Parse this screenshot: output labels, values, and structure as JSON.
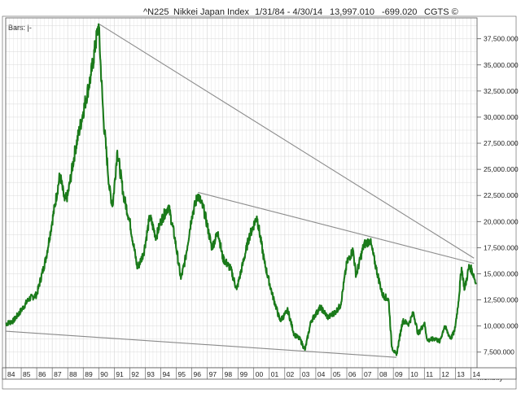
{
  "header": {
    "symbol": "^N225",
    "name": "Nikkei Japan Index",
    "range": "1/31/84 - 4/30/14",
    "last": "13,997.010",
    "change": "-699.020",
    "brand": "CGTS ©"
  },
  "bars_label": "Bars: |-",
  "period_label": "Monthly",
  "colors": {
    "price": "#1a7a1a",
    "trendline": "#8a8a8a",
    "grid": "#d9d9d9",
    "frame": "#555555",
    "background": "#ffffff"
  },
  "chart_data": {
    "type": "line",
    "title": "^N225 Nikkei Japan Index",
    "xlabel": "",
    "ylabel": "",
    "xlim": [
      1984.0,
      2014.4
    ],
    "ylim": [
      6000,
      39500
    ],
    "grid": true,
    "y_ticks": [
      7500,
      10000,
      12500,
      15000,
      17500,
      20000,
      22500,
      25000,
      27500,
      30000,
      32500,
      35000,
      37500
    ],
    "y_tick_labels": [
      "7,500.000",
      "10,000.000",
      "12,500.000",
      "15,000.000",
      "17,500.000",
      "20,000.000",
      "22,500.000",
      "25,000.000",
      "27,500.000",
      "30,000.000",
      "32,500.000",
      "35,000.000",
      "37,500.000"
    ],
    "x_tick_labels": [
      "84",
      "85",
      "86",
      "87",
      "88",
      "89",
      "90",
      "91",
      "92",
      "93",
      "94",
      "95",
      "96",
      "97",
      "98",
      "99",
      "00",
      "01",
      "02",
      "03",
      "04",
      "05",
      "06",
      "07",
      "08",
      "09",
      "10",
      "11",
      "12",
      "13",
      "14"
    ],
    "series": [
      {
        "values": [
          [
            1984.0,
            10200
          ],
          [
            1984.5,
            10500
          ],
          [
            1985.0,
            11500
          ],
          [
            1985.5,
            12600
          ],
          [
            1986.0,
            13000
          ],
          [
            1986.6,
            16500
          ],
          [
            1987.0,
            20000
          ],
          [
            1987.5,
            24500
          ],
          [
            1987.8,
            22000
          ],
          [
            1988.0,
            22500
          ],
          [
            1988.5,
            27000
          ],
          [
            1989.0,
            30500
          ],
          [
            1989.5,
            34000
          ],
          [
            1989.99,
            38900
          ],
          [
            1990.3,
            30000
          ],
          [
            1990.7,
            23000
          ],
          [
            1990.9,
            21500
          ],
          [
            1991.2,
            26800
          ],
          [
            1991.6,
            22500
          ],
          [
            1992.0,
            20000
          ],
          [
            1992.5,
            15500
          ],
          [
            1992.9,
            17000
          ],
          [
            1993.3,
            20500
          ],
          [
            1993.7,
            18500
          ],
          [
            1994.0,
            20000
          ],
          [
            1994.5,
            21500
          ],
          [
            1994.9,
            18500
          ],
          [
            1995.3,
            14500
          ],
          [
            1995.6,
            16500
          ],
          [
            1996.0,
            20500
          ],
          [
            1996.4,
            22600
          ],
          [
            1996.8,
            21000
          ],
          [
            1997.3,
            17500
          ],
          [
            1997.7,
            19000
          ],
          [
            1998.0,
            16500
          ],
          [
            1998.5,
            15500
          ],
          [
            1998.9,
            13500
          ],
          [
            1999.3,
            16000
          ],
          [
            1999.7,
            18500
          ],
          [
            2000.2,
            20500
          ],
          [
            2000.7,
            16000
          ],
          [
            2001.2,
            13000
          ],
          [
            2001.7,
            10500
          ],
          [
            2002.2,
            11500
          ],
          [
            2002.6,
            9200
          ],
          [
            2003.0,
            8700
          ],
          [
            2003.3,
            7700
          ],
          [
            2003.7,
            10500
          ],
          [
            2004.3,
            11800
          ],
          [
            2004.8,
            10800
          ],
          [
            2005.3,
            11400
          ],
          [
            2005.6,
            12000
          ],
          [
            2006.0,
            16000
          ],
          [
            2006.4,
            17300
          ],
          [
            2006.6,
            14800
          ],
          [
            2007.1,
            17800
          ],
          [
            2007.5,
            18200
          ],
          [
            2007.9,
            15500
          ],
          [
            2008.3,
            13000
          ],
          [
            2008.7,
            12500
          ],
          [
            2008.9,
            8000
          ],
          [
            2009.2,
            7200
          ],
          [
            2009.6,
            10500
          ],
          [
            2010.0,
            10200
          ],
          [
            2010.3,
            11300
          ],
          [
            2010.6,
            9200
          ],
          [
            2011.0,
            10300
          ],
          [
            2011.2,
            8600
          ],
          [
            2011.7,
            8800
          ],
          [
            2012.0,
            8500
          ],
          [
            2012.3,
            10000
          ],
          [
            2012.7,
            8800
          ],
          [
            2012.95,
            9500
          ],
          [
            2013.2,
            12300
          ],
          [
            2013.4,
            15600
          ],
          [
            2013.6,
            13500
          ],
          [
            2013.9,
            15800
          ],
          [
            2014.0,
            15500
          ],
          [
            2014.2,
            14800
          ],
          [
            2014.33,
            13997
          ]
        ]
      }
    ],
    "trendlines": [
      {
        "from": [
          1989.99,
          38950
        ],
        "to": [
          2014.2,
          16500
        ]
      },
      {
        "from": [
          1996.4,
          22800
        ],
        "to": [
          2014.2,
          16000
        ]
      },
      {
        "from": [
          1984.0,
          9500
        ],
        "to": [
          2009.2,
          7000
        ]
      }
    ]
  }
}
